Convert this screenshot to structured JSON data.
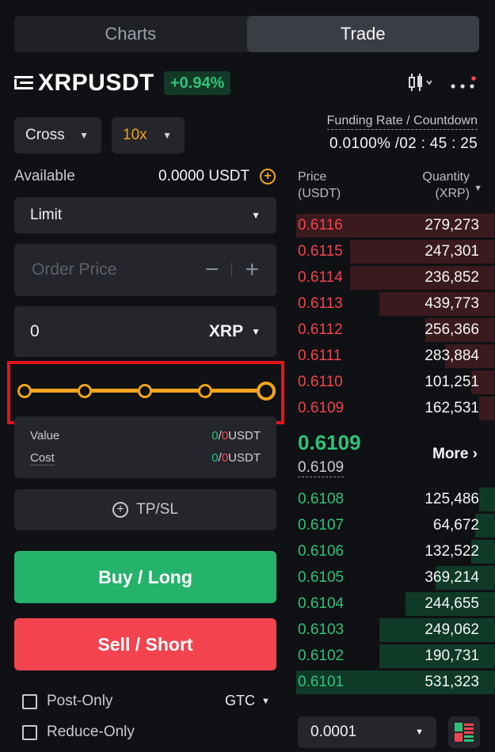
{
  "tabs": [
    {
      "label": "Charts",
      "active": false
    },
    {
      "label": "Trade",
      "active": true
    }
  ],
  "header": {
    "symbol": "XRPUSDT",
    "change": "+0.94%",
    "icons": [
      "menu-icon",
      "candlestick-icon",
      "more-dots-icon"
    ]
  },
  "selectors": {
    "margin_mode": "Cross",
    "leverage": "10x"
  },
  "funding": {
    "label": "Funding Rate / Countdown",
    "value": "0.0100% /02 : 45 : 25"
  },
  "available": {
    "label": "Available",
    "value": "0.0000 USDT"
  },
  "order_form": {
    "order_type": "Limit",
    "price_placeholder": "Order Price",
    "minus": "−",
    "plus": "+",
    "quantity": "0",
    "quantity_unit": "XRP",
    "slider_percent": 100,
    "value_label": "Value",
    "value_green": "0",
    "value_red": "0",
    "value_unit": "USDT",
    "cost_label": "Cost",
    "cost_green": "0",
    "cost_red": "0",
    "cost_unit": "USDT",
    "tpsl_label": "TP/SL",
    "buy_label": "Buy / Long",
    "sell_label": "Sell / Short",
    "post_only": "Post-Only",
    "reduce_only": "Reduce-Only",
    "time_in_force": "GTC"
  },
  "orderbook": {
    "price_head_1": "Price",
    "price_head_2": "(USDT)",
    "qty_head_1": "Quantity",
    "qty_head_2": "(XRP)",
    "asks": [
      {
        "price": "0.6116",
        "qty": "279,273",
        "depth": 1.0
      },
      {
        "price": "0.6115",
        "qty": "247,301",
        "depth": 0.73
      },
      {
        "price": "0.6114",
        "qty": "236,852",
        "depth": 0.73
      },
      {
        "price": "0.6113",
        "qty": "439,773",
        "depth": 0.58
      },
      {
        "price": "0.6112",
        "qty": "256,366",
        "depth": 0.35
      },
      {
        "price": "0.6111",
        "qty": "283,884",
        "depth": 0.25
      },
      {
        "price": "0.6110",
        "qty": "101,251",
        "depth": 0.12
      },
      {
        "price": "0.6109",
        "qty": "162,531",
        "depth": 0.08
      }
    ],
    "last_price": "0.6109",
    "mark_price": "0.6109",
    "more": "More ›",
    "bids": [
      {
        "price": "0.6108",
        "qty": "125,486",
        "depth": 0.08
      },
      {
        "price": "0.6107",
        "qty": "64,672",
        "depth": 0.1
      },
      {
        "price": "0.6106",
        "qty": "132,522",
        "depth": 0.12
      },
      {
        "price": "0.6105",
        "qty": "369,214",
        "depth": 0.3
      },
      {
        "price": "0.6104",
        "qty": "244,655",
        "depth": 0.45
      },
      {
        "price": "0.6103",
        "qty": "249,062",
        "depth": 0.58
      },
      {
        "price": "0.6102",
        "qty": "190,731",
        "depth": 0.58
      },
      {
        "price": "0.6101",
        "qty": "531,323",
        "depth": 1.0
      }
    ],
    "precision": "0.0001"
  },
  "colors": {
    "accent": "#f0a41c",
    "buy": "#25b26b",
    "sell": "#f2434f",
    "highlight_box": "#e3141b"
  }
}
